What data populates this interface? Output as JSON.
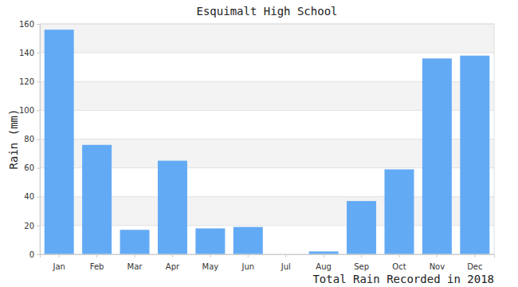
{
  "chart_data": {
    "type": "bar",
    "title": "Esquimalt High School",
    "ylabel": "Rain (mm)",
    "annotation": "Total Rain Recorded in 2018",
    "categories": [
      "Jan",
      "Feb",
      "Mar",
      "Apr",
      "May",
      "Jun",
      "Jul",
      "Aug",
      "Sep",
      "Oct",
      "Nov",
      "Dec"
    ],
    "values": [
      156,
      76,
      17,
      65,
      18,
      19,
      0,
      2,
      37,
      59,
      136,
      138
    ],
    "color": "#63aaf5",
    "ylim": [
      0,
      160
    ],
    "yticks": [
      0,
      20,
      40,
      60,
      80,
      100,
      120,
      140,
      160
    ],
    "grid": true
  }
}
